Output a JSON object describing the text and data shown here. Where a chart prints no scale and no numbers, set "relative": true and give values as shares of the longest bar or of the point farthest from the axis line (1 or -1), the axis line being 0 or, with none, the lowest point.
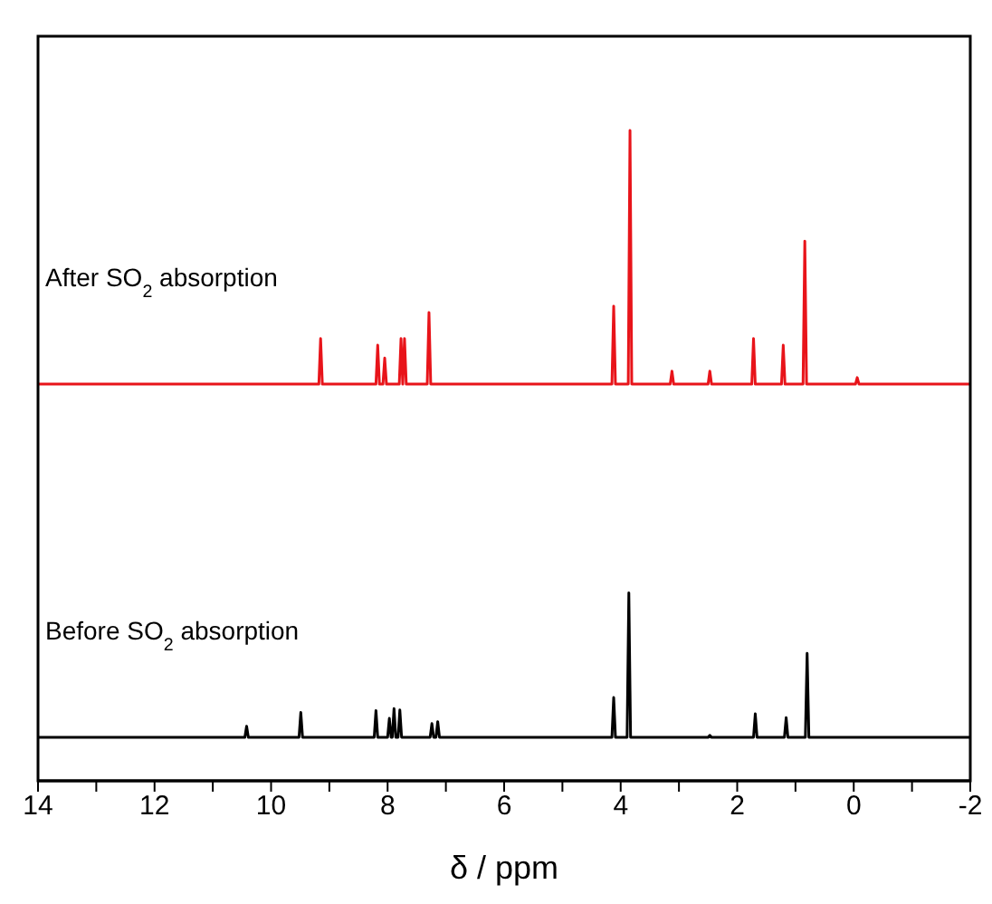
{
  "chart_data": {
    "type": "line",
    "relative": true,
    "xlabel": "δ / ppm",
    "xlim": [
      14,
      -2
    ],
    "xticks": [
      14,
      {
        "value": 13,
        "label": null
      },
      12,
      {
        "value": 11,
        "label": null
      },
      10,
      {
        "value": 9,
        "label": null
      },
      8,
      {
        "value": 7,
        "label": null
      },
      6,
      {
        "value": 5,
        "label": null
      },
      4,
      {
        "value": 3,
        "label": null
      },
      2,
      {
        "value": 1,
        "label": null
      },
      0,
      {
        "value": -1,
        "label": null
      },
      -2
    ],
    "marker": "none",
    "line_style": "solid",
    "series": [
      {
        "name": "After SO$_{2}$ absorption",
        "color": "#e8141a",
        "x": [
          14,
          9.18,
          9.15,
          9.12,
          8.2,
          8.17,
          8.14,
          8.08,
          8.05,
          8.02,
          7.8,
          7.77,
          7.74,
          7.74,
          7.71,
          7.68,
          7.32,
          7.29,
          7.26,
          4.15,
          4.12,
          4.09,
          3.87,
          3.84,
          3.81,
          3.15,
          3.12,
          3.09,
          2.5,
          2.47,
          2.44,
          1.75,
          1.72,
          1.69,
          1.24,
          1.21,
          1.18,
          0.87,
          0.84,
          0.81,
          -0.03,
          -0.06,
          -0.09,
          -2
        ],
        "values": [
          0.61,
          0.61,
          0.68,
          0.61,
          0.61,
          0.67,
          0.61,
          0.61,
          0.65,
          0.61,
          0.61,
          0.68,
          0.61,
          0.61,
          0.68,
          0.61,
          0.61,
          0.72,
          0.61,
          0.61,
          0.73,
          0.61,
          0.61,
          1.0,
          0.61,
          0.61,
          0.63,
          0.61,
          0.61,
          0.63,
          0.61,
          0.61,
          0.68,
          0.61,
          0.61,
          0.67,
          0.61,
          0.61,
          0.83,
          0.61,
          0.61,
          0.62,
          0.61,
          0.61
        ]
      },
      {
        "name": "Before SO$_{2}$ absorption",
        "color": "#000000",
        "x": [
          14,
          10.45,
          10.42,
          10.39,
          9.52,
          9.49,
          9.46,
          8.23,
          8.2,
          8.17,
          8.0,
          7.97,
          7.94,
          7.92,
          7.89,
          7.86,
          7.82,
          7.79,
          7.76,
          7.27,
          7.24,
          7.21,
          7.17,
          7.14,
          7.11,
          4.15,
          4.12,
          4.09,
          3.89,
          3.86,
          3.83,
          2.5,
          2.47,
          2.44,
          1.72,
          1.69,
          1.66,
          1.19,
          1.16,
          1.13,
          0.83,
          0.8,
          0.77,
          -2
        ],
        "values": [
          0.067,
          0.067,
          0.084,
          0.067,
          0.067,
          0.105,
          0.067,
          0.067,
          0.108,
          0.067,
          0.067,
          0.096,
          0.067,
          0.067,
          0.111,
          0.067,
          0.067,
          0.109,
          0.067,
          0.067,
          0.088,
          0.067,
          0.067,
          0.091,
          0.067,
          0.067,
          0.128,
          0.067,
          0.067,
          0.289,
          0.067,
          0.067,
          0.07,
          0.067,
          0.067,
          0.103,
          0.067,
          0.067,
          0.097,
          0.067,
          0.067,
          0.196,
          0.067,
          0.067
        ]
      }
    ]
  }
}
